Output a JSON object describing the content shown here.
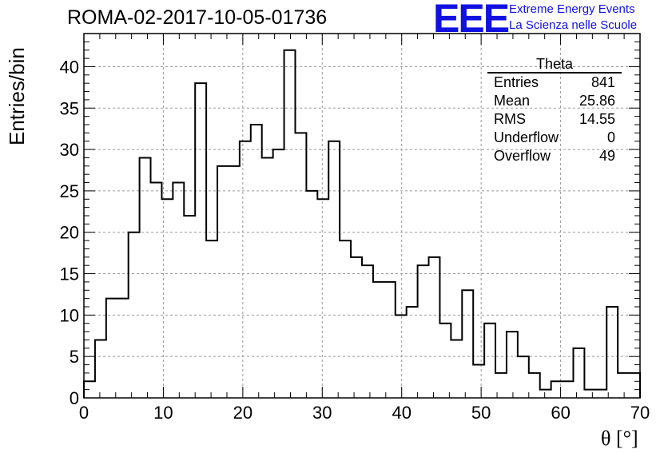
{
  "title": "ROMA-02-2017-10-05-01736",
  "logo": {
    "mark": "EEE",
    "line1": "Extreme Energy Events",
    "line2": "La Scienza nelle Scuole",
    "color": "#1010e0"
  },
  "stats": {
    "name": "Theta",
    "rows": [
      {
        "label": "Entries",
        "value": "841"
      },
      {
        "label": "Mean",
        "value": "25.86"
      },
      {
        "label": "RMS",
        "value": "14.55"
      },
      {
        "label": "Underflow",
        "value": "0"
      },
      {
        "label": "Overflow",
        "value": "49"
      }
    ]
  },
  "chart_data": {
    "type": "bar",
    "style": "step-histogram",
    "xlabel": "θ [°]",
    "ylabel": "Entries/bin",
    "xlim": [
      0,
      70
    ],
    "ylim": [
      0,
      44
    ],
    "grid": true,
    "bin_width": 1.4,
    "x_ticks": [
      0,
      10,
      20,
      30,
      40,
      50,
      60,
      70
    ],
    "y_ticks": [
      0,
      5,
      10,
      15,
      20,
      25,
      30,
      35,
      40
    ],
    "values": [
      2,
      7,
      12,
      12,
      20,
      29,
      26,
      24,
      26,
      22,
      38,
      19,
      28,
      28,
      31,
      33,
      29,
      30,
      42,
      32,
      25,
      24,
      31,
      19,
      17,
      16,
      14,
      14,
      10,
      11,
      16,
      17,
      9,
      7,
      13,
      4,
      9,
      3,
      8,
      5,
      3,
      1,
      2,
      2,
      6,
      1,
      1,
      11,
      3,
      3
    ]
  }
}
